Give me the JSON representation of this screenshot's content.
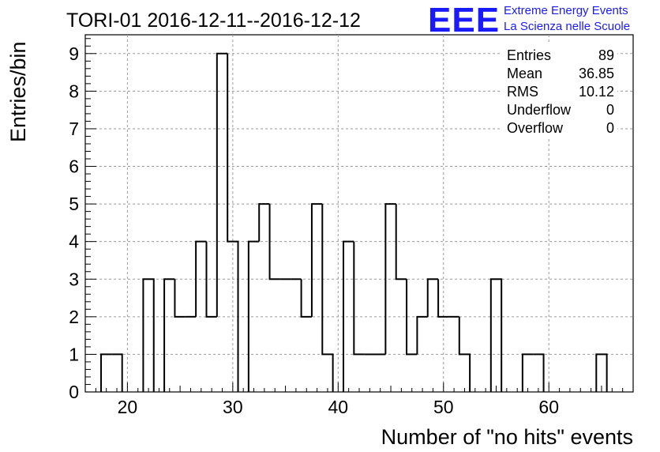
{
  "header": {
    "title": "TORI-01 2016-12-11--2016-12-12"
  },
  "logo": {
    "mark": "EEE",
    "line1": "Extreme Energy Events",
    "line2": "La Scienza nelle Scuole",
    "color": "#1a1aff"
  },
  "stats": {
    "rows": [
      {
        "label": "Entries",
        "value": "89"
      },
      {
        "label": "Mean",
        "value": "36.85"
      },
      {
        "label": "RMS",
        "value": "10.12"
      },
      {
        "label": "Underflow",
        "value": "0"
      },
      {
        "label": "Overflow",
        "value": "0"
      }
    ]
  },
  "chart_data": {
    "type": "bar",
    "title": "TORI-01 2016-12-11--2016-12-12",
    "xlabel": "Number of \"no hits\" events",
    "ylabel": "Entries/bin",
    "xlim": [
      16,
      68
    ],
    "ylim": [
      0,
      9.5
    ],
    "grid": true,
    "xticks": [
      20,
      30,
      40,
      50,
      60
    ],
    "yticks": [
      0,
      1,
      2,
      3,
      4,
      5,
      6,
      7,
      8,
      9
    ],
    "bin_width": 1,
    "x": [
      18,
      19,
      22,
      24,
      25,
      26,
      27,
      28,
      29,
      30,
      32,
      33,
      34,
      35,
      36,
      37,
      38,
      39,
      41,
      42,
      43,
      44,
      45,
      46,
      47,
      48,
      49,
      50,
      51,
      52,
      55,
      58,
      59,
      65
    ],
    "values": [
      1,
      1,
      3,
      3,
      2,
      2,
      4,
      2,
      9,
      4,
      4,
      5,
      3,
      3,
      3,
      2,
      5,
      1,
      4,
      1,
      1,
      1,
      5,
      3,
      1,
      2,
      3,
      2,
      2,
      1,
      3,
      1,
      1,
      1
    ]
  }
}
